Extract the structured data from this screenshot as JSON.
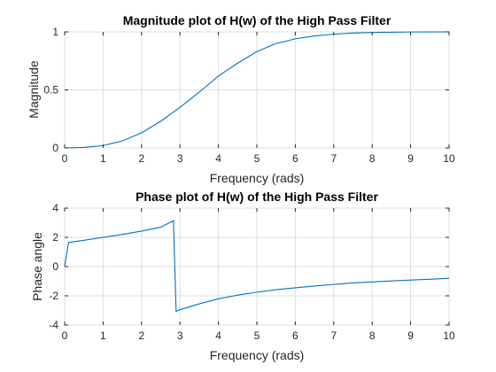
{
  "chart_data": [
    {
      "type": "line",
      "title": "Magnitude plot of H(w) of the High Pass Filter",
      "xlabel": "Frequency (rads)",
      "ylabel": "Magnitude",
      "xlim": [
        0,
        10
      ],
      "ylim": [
        0,
        1
      ],
      "xticks": [
        "0",
        "1",
        "2",
        "3",
        "4",
        "5",
        "6",
        "7",
        "8",
        "9",
        "10"
      ],
      "yticks": [
        "0",
        "0.5",
        "1"
      ],
      "grid": true,
      "series": [
        {
          "color": "#0072bd",
          "x": [
            0,
            0.5,
            1,
            1.5,
            2,
            2.5,
            3,
            3.5,
            4,
            4.5,
            5,
            5.5,
            6,
            6.5,
            7,
            7.5,
            8,
            8.5,
            9,
            9.5,
            10
          ],
          "y": [
            0,
            0.004,
            0.02,
            0.06,
            0.13,
            0.23,
            0.35,
            0.48,
            0.62,
            0.73,
            0.83,
            0.9,
            0.94,
            0.965,
            0.98,
            0.99,
            0.995,
            0.997,
            0.999,
            0.9995,
            1.0
          ]
        }
      ]
    },
    {
      "type": "line",
      "title": "Phase plot of H(w) of the High Pass Filter",
      "xlabel": "Frequency (rads)",
      "ylabel": "Phase angle",
      "xlim": [
        0,
        10
      ],
      "ylim": [
        -4,
        4
      ],
      "xticks": [
        "0",
        "1",
        "2",
        "3",
        "4",
        "5",
        "6",
        "7",
        "8",
        "9",
        "10"
      ],
      "yticks": [
        "-4",
        "-2",
        "0",
        "2",
        "4"
      ],
      "grid": true,
      "series": [
        {
          "color": "#0072bd",
          "x": [
            0,
            0.1,
            0.5,
            1,
            1.5,
            2,
            2.5,
            2.83,
            2.9,
            3,
            3.5,
            4,
            4.5,
            5,
            5.5,
            6,
            6.5,
            7,
            7.5,
            8,
            8.5,
            9,
            9.5,
            10
          ],
          "y": [
            0,
            1.65,
            1.8,
            2.0,
            2.2,
            2.43,
            2.7,
            3.14,
            -3.07,
            -2.95,
            -2.55,
            -2.2,
            -1.95,
            -1.75,
            -1.58,
            -1.45,
            -1.33,
            -1.22,
            -1.12,
            -1.05,
            -0.98,
            -0.92,
            -0.87,
            -0.8
          ]
        }
      ]
    }
  ]
}
